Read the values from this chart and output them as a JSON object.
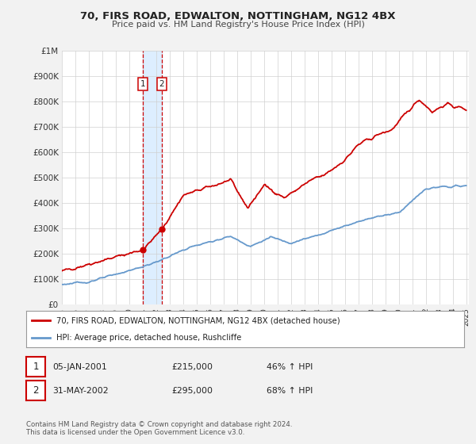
{
  "title": "70, FIRS ROAD, EDWALTON, NOTTINGHAM, NG12 4BX",
  "subtitle": "Price paid vs. HM Land Registry's House Price Index (HPI)",
  "x_start": 1995.0,
  "x_end": 2025.2,
  "y_min": 0,
  "y_max": 1000000,
  "y_ticks": [
    0,
    100000,
    200000,
    300000,
    400000,
    500000,
    600000,
    700000,
    800000,
    900000,
    1000000
  ],
  "y_tick_labels": [
    "£0",
    "£100K",
    "£200K",
    "£300K",
    "£400K",
    "£500K",
    "£600K",
    "£700K",
    "£800K",
    "£900K",
    "£1M"
  ],
  "x_ticks": [
    1995,
    1996,
    1997,
    1998,
    1999,
    2000,
    2001,
    2002,
    2003,
    2004,
    2005,
    2006,
    2007,
    2008,
    2009,
    2010,
    2011,
    2012,
    2013,
    2014,
    2015,
    2016,
    2017,
    2018,
    2019,
    2020,
    2021,
    2022,
    2023,
    2024,
    2025
  ],
  "sale1_x": 2001.02,
  "sale1_y": 215000,
  "sale2_x": 2002.42,
  "sale2_y": 295000,
  "sale1_label": "1",
  "sale2_label": "2",
  "red_line_color": "#cc0000",
  "blue_line_color": "#6699cc",
  "highlight_fill_color": "#ddeeff",
  "vline1_color": "#cc0000",
  "vline2_color": "#cc0000",
  "background_color": "#f2f2f2",
  "plot_bg_color": "#ffffff",
  "legend_line1": "70, FIRS ROAD, EDWALTON, NOTTINGHAM, NG12 4BX (detached house)",
  "legend_line2": "HPI: Average price, detached house, Rushcliffe",
  "table_row1": [
    "1",
    "05-JAN-2001",
    "£215,000",
    "46% ↑ HPI"
  ],
  "table_row2": [
    "2",
    "31-MAY-2002",
    "£295,000",
    "68% ↑ HPI"
  ],
  "footnote1": "Contains HM Land Registry data © Crown copyright and database right 2024.",
  "footnote2": "This data is licensed under the Open Government Licence v3.0."
}
